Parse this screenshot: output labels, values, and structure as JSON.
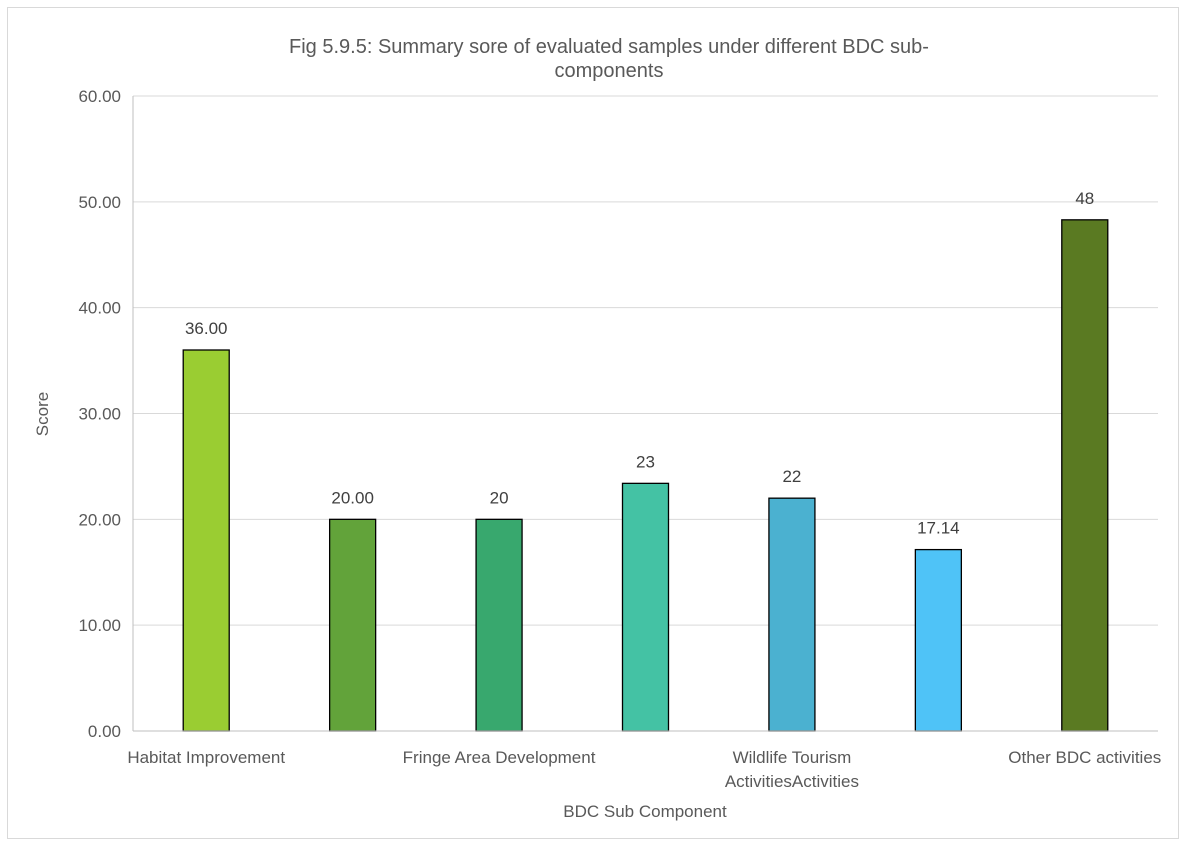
{
  "chart_data": {
    "type": "bar",
    "title_lines": [
      "Fig 5.9.5: Summary sore of evaluated samples under different BDC sub-",
      "components"
    ],
    "xlabel": "BDC Sub Component",
    "ylabel": "Score",
    "ylim": [
      0,
      60
    ],
    "y_ticks": [
      "0.00",
      "10.00",
      "20.00",
      "30.00",
      "40.00",
      "50.00",
      "60.00"
    ],
    "grid": true,
    "legend": "none",
    "categories": [
      "",
      "",
      "",
      "",
      "",
      "",
      ""
    ],
    "values": [
      36.0,
      20.0,
      20.0,
      23.4,
      22.0,
      17.14,
      48.3
    ],
    "data_labels": [
      "36.00",
      "20.00",
      "20",
      "23",
      "22",
      "17.14",
      "48"
    ],
    "x_tick_labels": [
      {
        "bar_index": 0,
        "lines": [
          "Habitat Improvement"
        ]
      },
      {
        "bar_index": 2,
        "lines": [
          "Fringe Area Development"
        ]
      },
      {
        "bar_index": 4,
        "lines": [
          "Wildlife Tourism",
          "ActivitiesActivities"
        ]
      },
      {
        "bar_index": 6,
        "lines": [
          "Other BDC activities"
        ]
      }
    ],
    "colors": [
      "#9acd32",
      "#62a33a",
      "#38a86e",
      "#44c2a4",
      "#4bb1d0",
      "#4fc3f7",
      "#5a7a22"
    ],
    "gridline_color": "#d9d9d9",
    "text_color": "#595959"
  }
}
